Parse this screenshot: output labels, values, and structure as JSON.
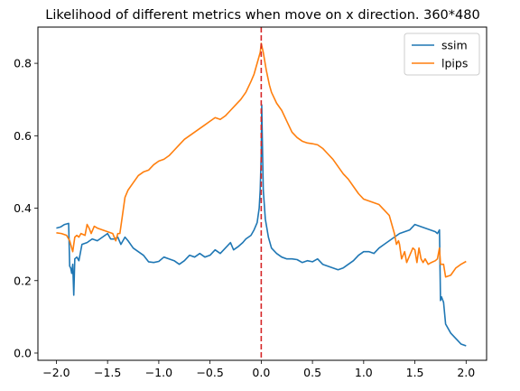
{
  "chart_data": {
    "type": "line",
    "title": "Likelihood of different metrics when move on x direction. 360*480",
    "xlabel": "",
    "ylabel": "",
    "xlim": [
      -2.18,
      2.2
    ],
    "ylim": [
      -0.02,
      0.9
    ],
    "xticks": [
      -2.0,
      -1.5,
      -1.0,
      -0.5,
      0.0,
      0.5,
      1.0,
      1.5,
      2.0
    ],
    "xtick_labels": [
      "−2.0",
      "−1.5",
      "−1.0",
      "−0.5",
      "0.0",
      "0.5",
      "1.0",
      "1.5",
      "2.0"
    ],
    "yticks": [
      0.0,
      0.2,
      0.4,
      0.6,
      0.8
    ],
    "ytick_labels": [
      "0.0",
      "0.2",
      "0.4",
      "0.6",
      "0.8"
    ],
    "grid": false,
    "legend_position": "top-right",
    "vline": {
      "x": 0.0,
      "color": "#d62728",
      "style": "dashed"
    },
    "series": [
      {
        "name": "ssim",
        "color": "#1f77b4",
        "points": [
          [
            -2.0,
            0.345
          ],
          [
            -1.96,
            0.348
          ],
          [
            -1.92,
            0.355
          ],
          [
            -1.88,
            0.358
          ],
          [
            -1.87,
            0.24
          ],
          [
            -1.86,
            0.235
          ],
          [
            -1.85,
            0.22
          ],
          [
            -1.84,
            0.245
          ],
          [
            -1.83,
            0.16
          ],
          [
            -1.82,
            0.26
          ],
          [
            -1.8,
            0.265
          ],
          [
            -1.78,
            0.255
          ],
          [
            -1.75,
            0.3
          ],
          [
            -1.7,
            0.305
          ],
          [
            -1.65,
            0.315
          ],
          [
            -1.6,
            0.31
          ],
          [
            -1.55,
            0.32
          ],
          [
            -1.5,
            0.33
          ],
          [
            -1.47,
            0.315
          ],
          [
            -1.43,
            0.315
          ],
          [
            -1.4,
            0.32
          ],
          [
            -1.37,
            0.3
          ],
          [
            -1.33,
            0.32
          ],
          [
            -1.3,
            0.31
          ],
          [
            -1.25,
            0.29
          ],
          [
            -1.2,
            0.28
          ],
          [
            -1.15,
            0.27
          ],
          [
            -1.1,
            0.252
          ],
          [
            -1.05,
            0.25
          ],
          [
            -1.0,
            0.253
          ],
          [
            -0.95,
            0.265
          ],
          [
            -0.9,
            0.26
          ],
          [
            -0.85,
            0.255
          ],
          [
            -0.8,
            0.245
          ],
          [
            -0.75,
            0.255
          ],
          [
            -0.7,
            0.27
          ],
          [
            -0.65,
            0.265
          ],
          [
            -0.6,
            0.275
          ],
          [
            -0.55,
            0.265
          ],
          [
            -0.5,
            0.27
          ],
          [
            -0.45,
            0.285
          ],
          [
            -0.4,
            0.275
          ],
          [
            -0.35,
            0.29
          ],
          [
            -0.3,
            0.305
          ],
          [
            -0.27,
            0.285
          ],
          [
            -0.22,
            0.295
          ],
          [
            -0.18,
            0.305
          ],
          [
            -0.15,
            0.315
          ],
          [
            -0.1,
            0.325
          ],
          [
            -0.07,
            0.34
          ],
          [
            -0.04,
            0.36
          ],
          [
            -0.02,
            0.4
          ],
          [
            -0.01,
            0.45
          ],
          [
            0.0,
            0.55
          ],
          [
            0.005,
            0.685
          ],
          [
            0.01,
            0.6
          ],
          [
            0.02,
            0.45
          ],
          [
            0.04,
            0.37
          ],
          [
            0.07,
            0.32
          ],
          [
            0.1,
            0.29
          ],
          [
            0.15,
            0.275
          ],
          [
            0.2,
            0.265
          ],
          [
            0.25,
            0.26
          ],
          [
            0.3,
            0.26
          ],
          [
            0.35,
            0.258
          ],
          [
            0.4,
            0.25
          ],
          [
            0.45,
            0.255
          ],
          [
            0.5,
            0.252
          ],
          [
            0.55,
            0.26
          ],
          [
            0.6,
            0.245
          ],
          [
            0.65,
            0.24
          ],
          [
            0.7,
            0.235
          ],
          [
            0.75,
            0.23
          ],
          [
            0.8,
            0.235
          ],
          [
            0.85,
            0.245
          ],
          [
            0.9,
            0.255
          ],
          [
            0.95,
            0.27
          ],
          [
            1.0,
            0.28
          ],
          [
            1.05,
            0.28
          ],
          [
            1.1,
            0.275
          ],
          [
            1.15,
            0.29
          ],
          [
            1.2,
            0.3
          ],
          [
            1.25,
            0.31
          ],
          [
            1.3,
            0.32
          ],
          [
            1.35,
            0.33
          ],
          [
            1.4,
            0.335
          ],
          [
            1.45,
            0.34
          ],
          [
            1.5,
            0.355
          ],
          [
            1.55,
            0.35
          ],
          [
            1.6,
            0.345
          ],
          [
            1.65,
            0.34
          ],
          [
            1.7,
            0.335
          ],
          [
            1.72,
            0.33
          ],
          [
            1.74,
            0.34
          ],
          [
            1.75,
            0.145
          ],
          [
            1.76,
            0.155
          ],
          [
            1.78,
            0.14
          ],
          [
            1.8,
            0.08
          ],
          [
            1.85,
            0.055
          ],
          [
            1.9,
            0.04
          ],
          [
            1.95,
            0.025
          ],
          [
            2.0,
            0.02
          ]
        ]
      },
      {
        "name": "lpips",
        "color": "#ff7f0e",
        "points": [
          [
            -2.0,
            0.332
          ],
          [
            -1.95,
            0.33
          ],
          [
            -1.9,
            0.325
          ],
          [
            -1.87,
            0.31
          ],
          [
            -1.84,
            0.28
          ],
          [
            -1.82,
            0.32
          ],
          [
            -1.8,
            0.325
          ],
          [
            -1.78,
            0.32
          ],
          [
            -1.76,
            0.33
          ],
          [
            -1.72,
            0.325
          ],
          [
            -1.7,
            0.355
          ],
          [
            -1.68,
            0.345
          ],
          [
            -1.66,
            0.33
          ],
          [
            -1.63,
            0.35
          ],
          [
            -1.6,
            0.345
          ],
          [
            -1.55,
            0.34
          ],
          [
            -1.5,
            0.335
          ],
          [
            -1.45,
            0.33
          ],
          [
            -1.42,
            0.31
          ],
          [
            -1.4,
            0.33
          ],
          [
            -1.38,
            0.33
          ],
          [
            -1.36,
            0.37
          ],
          [
            -1.33,
            0.43
          ],
          [
            -1.3,
            0.45
          ],
          [
            -1.25,
            0.47
          ],
          [
            -1.2,
            0.49
          ],
          [
            -1.15,
            0.5
          ],
          [
            -1.1,
            0.505
          ],
          [
            -1.05,
            0.52
          ],
          [
            -1.0,
            0.53
          ],
          [
            -0.95,
            0.535
          ],
          [
            -0.9,
            0.545
          ],
          [
            -0.85,
            0.56
          ],
          [
            -0.8,
            0.575
          ],
          [
            -0.75,
            0.59
          ],
          [
            -0.7,
            0.6
          ],
          [
            -0.65,
            0.61
          ],
          [
            -0.6,
            0.62
          ],
          [
            -0.55,
            0.63
          ],
          [
            -0.5,
            0.64
          ],
          [
            -0.45,
            0.65
          ],
          [
            -0.4,
            0.645
          ],
          [
            -0.35,
            0.655
          ],
          [
            -0.3,
            0.67
          ],
          [
            -0.25,
            0.685
          ],
          [
            -0.2,
            0.7
          ],
          [
            -0.15,
            0.72
          ],
          [
            -0.1,
            0.75
          ],
          [
            -0.07,
            0.77
          ],
          [
            -0.05,
            0.79
          ],
          [
            -0.03,
            0.81
          ],
          [
            -0.01,
            0.83
          ],
          [
            0.0,
            0.855
          ],
          [
            0.02,
            0.83
          ],
          [
            0.05,
            0.78
          ],
          [
            0.08,
            0.74
          ],
          [
            0.1,
            0.72
          ],
          [
            0.15,
            0.69
          ],
          [
            0.2,
            0.67
          ],
          [
            0.25,
            0.64
          ],
          [
            0.3,
            0.61
          ],
          [
            0.35,
            0.595
          ],
          [
            0.4,
            0.585
          ],
          [
            0.45,
            0.58
          ],
          [
            0.5,
            0.578
          ],
          [
            0.55,
            0.575
          ],
          [
            0.6,
            0.565
          ],
          [
            0.65,
            0.55
          ],
          [
            0.7,
            0.535
          ],
          [
            0.75,
            0.515
          ],
          [
            0.8,
            0.495
          ],
          [
            0.85,
            0.48
          ],
          [
            0.9,
            0.46
          ],
          [
            0.95,
            0.44
          ],
          [
            1.0,
            0.425
          ],
          [
            1.05,
            0.42
          ],
          [
            1.1,
            0.415
          ],
          [
            1.15,
            0.41
          ],
          [
            1.2,
            0.395
          ],
          [
            1.25,
            0.38
          ],
          [
            1.28,
            0.35
          ],
          [
            1.3,
            0.33
          ],
          [
            1.32,
            0.3
          ],
          [
            1.34,
            0.31
          ],
          [
            1.35,
            0.3
          ],
          [
            1.37,
            0.26
          ],
          [
            1.4,
            0.28
          ],
          [
            1.42,
            0.25
          ],
          [
            1.45,
            0.27
          ],
          [
            1.48,
            0.29
          ],
          [
            1.5,
            0.285
          ],
          [
            1.52,
            0.25
          ],
          [
            1.54,
            0.29
          ],
          [
            1.56,
            0.26
          ],
          [
            1.58,
            0.25
          ],
          [
            1.6,
            0.26
          ],
          [
            1.63,
            0.245
          ],
          [
            1.66,
            0.25
          ],
          [
            1.7,
            0.255
          ],
          [
            1.72,
            0.26
          ],
          [
            1.74,
            0.29
          ],
          [
            1.75,
            0.245
          ],
          [
            1.78,
            0.245
          ],
          [
            1.8,
            0.21
          ],
          [
            1.85,
            0.215
          ],
          [
            1.9,
            0.235
          ],
          [
            1.95,
            0.245
          ],
          [
            2.0,
            0.253
          ]
        ]
      }
    ]
  }
}
